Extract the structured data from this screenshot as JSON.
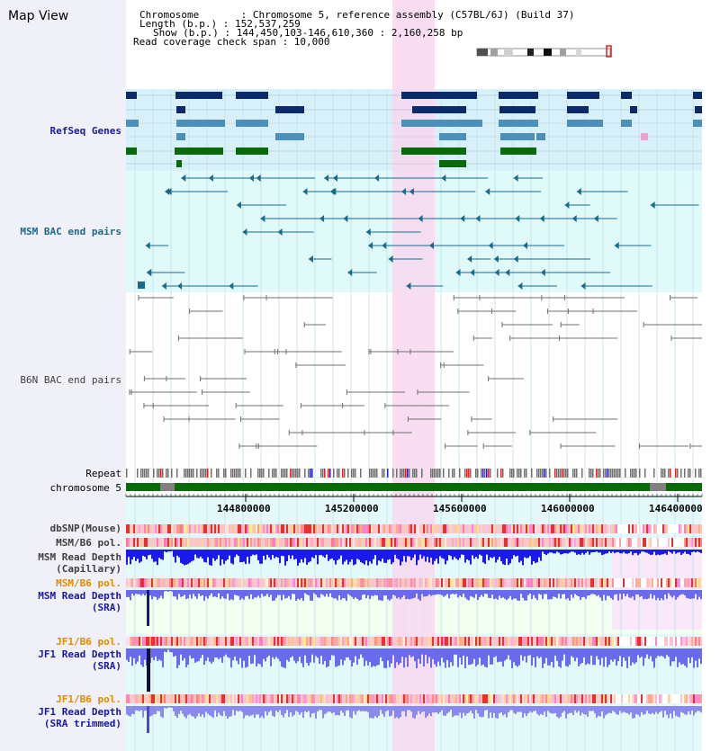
{
  "header": {
    "title": "Map View",
    "info_lines": [
      "Chromosome       : Chromosome 5, reference assembly (C57BL/6J) (Build 37)",
      "Length (b.p.) : 152,537,259",
      "Show (b.p.) : 144,450,103-146,610,360 : 2,160,258 bp",
      "Read coverage check span : 10,000"
    ]
  },
  "labels": {
    "refseq": "RefSeq Genes",
    "msm_bac": "MSM BAC end pairs",
    "b6n_bac": "B6N BAC end pairs",
    "repeat": "Repeat",
    "chromosome": "chromosome 5",
    "dbsnp": "dbSNP(Mouse)",
    "msm_b6_pol_1": "MSM/B6 pol.",
    "msm_depth_cap_1": "MSM Read Depth",
    "msm_depth_cap_2": "(Capillary)",
    "msm_b6_pol_2": "MSM/B6 pol.",
    "msm_depth_sra_1": "MSM Read Depth",
    "msm_depth_sra_2": "(SRA)",
    "jf1_b6_pol_1": "JF1/B6 pol.",
    "jf1_depth_sra_1": "JF1 Read Depth",
    "jf1_depth_sra_2": "(SRA)",
    "jf1_b6_pol_2": "JF1/B6 pol.",
    "jf1_depth_trim_1": "JF1 Read Depth",
    "jf1_depth_trim_2": "(SRA trimmed)"
  },
  "ruler": {
    "ticks": [
      "144800000",
      "145200000",
      "145600000",
      "146000000",
      "146400000"
    ]
  },
  "colors": {
    "refseq_dark": "#0a2a6a",
    "refseq_light": "#4a90b8",
    "refseq_green": "#0a6a0a",
    "refseq_bg": "#d8f0fa",
    "msm_bac": "#1a6a8a",
    "msm_bg": "#e0fafa",
    "b6n_bac": "#707070",
    "highlight": "#f8d8f0",
    "chromosome": "#0a6a0a",
    "depth_capillary": "#1a1aee",
    "depth_sra": "#6a6aee",
    "label_blue": "#1a1aa0",
    "label_gray": "#404040",
    "label_orange": "#e08a00",
    "label_teal": "#1a6a8a"
  }
}
